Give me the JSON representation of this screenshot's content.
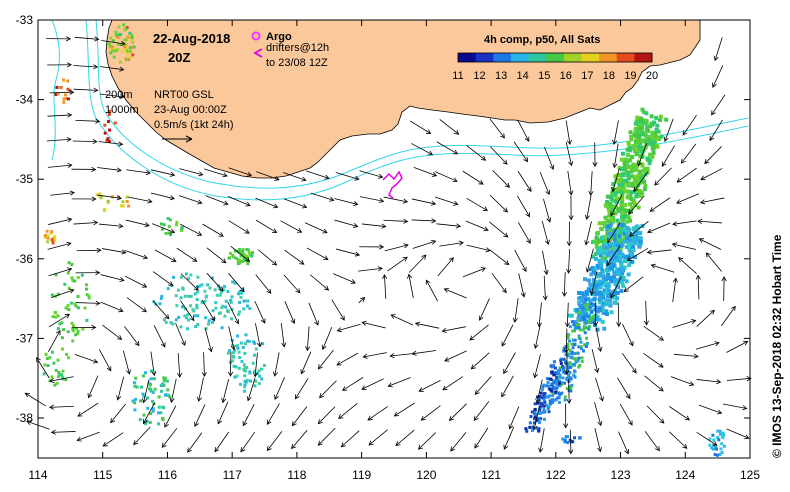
{
  "map": {
    "title_date": "22-Aug-2018",
    "title_time": "20Z",
    "argo_label": "Argo",
    "drifters_label": "drifters@12h",
    "drifters_range": "to 23/08 12Z",
    "isobath_200": "200m",
    "isobath_1000": "1000m",
    "product": "NRT00 GSL",
    "product_date": "23-Aug 00:00Z",
    "current_scale": "0.5m/s (1kt 24h)",
    "sst_caption": "4h comp, p50, All Sats",
    "credit": "© IMOS 13-Sep-2018 02:32 Hobart Time",
    "colors": {
      "land": "#fac89b",
      "isobath": "#33d6e6",
      "argo": "#ff33ff",
      "drifter": "#e600e6"
    }
  },
  "axes": {
    "x_ticks": [
      "114",
      "115",
      "116",
      "117",
      "118",
      "119",
      "120",
      "121",
      "122",
      "123",
      "124",
      "125"
    ],
    "y_ticks": [
      "-33",
      "-34",
      "-35",
      "-36",
      "-37",
      "-38"
    ]
  },
  "colorbar": {
    "ticks": [
      "11",
      "12",
      "13",
      "14",
      "15",
      "16",
      "17",
      "18",
      "19",
      "20"
    ],
    "colors": [
      "#0a0a8c",
      "#1932c8",
      "#1e78e6",
      "#28b4e6",
      "#2dc8a0",
      "#46c846",
      "#a0d228",
      "#e6d21e",
      "#f09628",
      "#e64b1e",
      "#b41414"
    ]
  }
}
